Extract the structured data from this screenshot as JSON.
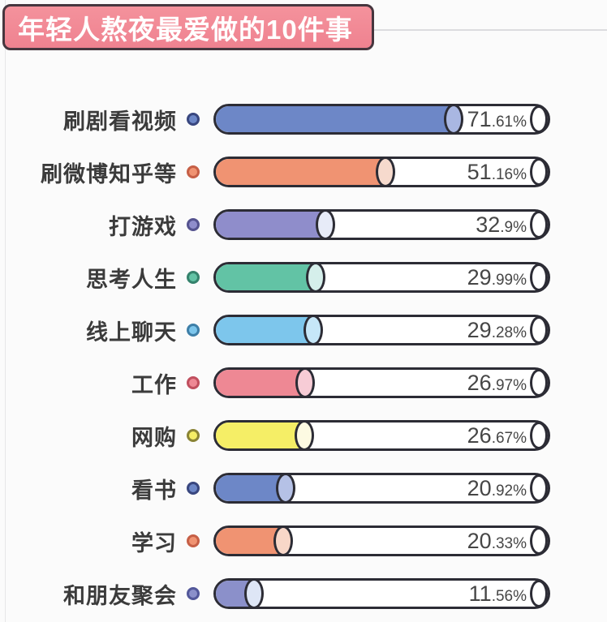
{
  "title": "年轻人熬夜最爱做的10件事",
  "colors": {
    "page_bg": "#fbfbfb",
    "banner_bg": "#f1848f",
    "banner_border": "#46363e",
    "title_text": "#ffffff",
    "divider": "#dcdcdf",
    "outline": "#2c2c35",
    "label_text": "#3b3b3b",
    "value_text": "#464646",
    "track_bg": "#ffffff"
  },
  "chart_data": {
    "type": "bar",
    "orientation": "horizontal",
    "title": "年轻人熬夜最爱做的10件事",
    "categories": [
      "刷剧看视频",
      "刷微博知乎等",
      "打游戏",
      "思考人生",
      "线上聊天",
      "工作",
      "网购",
      "看书",
      "学习",
      "和朋友聚会"
    ],
    "values": [
      71.61,
      51.16,
      32.9,
      29.99,
      29.28,
      26.97,
      26.67,
      20.92,
      20.33,
      11.56
    ],
    "value_labels": [
      "71.61%",
      "51.16%",
      "32.9%",
      "29.99%",
      "29.28%",
      "26.97%",
      "26.67%",
      "20.92%",
      "20.33%",
      "11.56%"
    ],
    "xlabel": "",
    "ylabel": "",
    "xlim": [
      0,
      100
    ],
    "grid": false,
    "legend": false,
    "bar_style": "outlined-cylinder-pill"
  },
  "rows": [
    {
      "label": "刷剧看视频",
      "value": 71.61,
      "pct_int": "71",
      "pct_frac": ".61%",
      "bar_color": "#6d87c7",
      "cap_color": "#a9b7e2",
      "dot_fill": "#6d87c7",
      "dot_border": "#39477f"
    },
    {
      "label": "刷微博知乎等",
      "value": 51.16,
      "pct_int": "51",
      "pct_frac": ".16%",
      "bar_color": "#f09372",
      "cap_color": "#f6dacd",
      "dot_fill": "#f09372",
      "dot_border": "#c65f46"
    },
    {
      "label": "打游戏",
      "value": 32.9,
      "pct_int": "32",
      "pct_frac": ".9%",
      "bar_color": "#8f8dcb",
      "cap_color": "#e7ebf8",
      "dot_fill": "#8f8dcb",
      "dot_border": "#55538f"
    },
    {
      "label": "思考人生",
      "value": 29.99,
      "pct_int": "29",
      "pct_frac": ".99%",
      "bar_color": "#62c3a5",
      "cap_color": "#d5efeb",
      "dot_fill": "#62c3a5",
      "dot_border": "#35826c"
    },
    {
      "label": "线上聊天",
      "value": 29.28,
      "pct_int": "29",
      "pct_frac": ".28%",
      "bar_color": "#7dc6ec",
      "cap_color": "#c6e7f8",
      "dot_fill": "#7dc6ec",
      "dot_border": "#3e7fa8"
    },
    {
      "label": "工作",
      "value": 26.97,
      "pct_int": "26",
      "pct_frac": ".97%",
      "bar_color": "#ee8894",
      "cap_color": "#f7ccd6",
      "dot_fill": "#ee8894",
      "dot_border": "#c04f5e"
    },
    {
      "label": "网购",
      "value": 26.67,
      "pct_int": "26",
      "pct_frac": ".67%",
      "bar_color": "#f5ee66",
      "cap_color": "#fdfae2",
      "dot_fill": "#f5ee66",
      "dot_border": "#8a8435"
    },
    {
      "label": "看书",
      "value": 20.92,
      "pct_int": "20",
      "pct_frac": ".92%",
      "bar_color": "#6d87c7",
      "cap_color": "#b5c1e6",
      "dot_fill": "#6d87c7",
      "dot_border": "#39477f"
    },
    {
      "label": "学习",
      "value": 20.33,
      "pct_int": "20",
      "pct_frac": ".33%",
      "bar_color": "#f09372",
      "cap_color": "#f8d7c8",
      "dot_fill": "#f09372",
      "dot_border": "#c65f46"
    },
    {
      "label": "和朋友聚会",
      "value": 11.56,
      "pct_int": "11",
      "pct_frac": ".56%",
      "bar_color": "#8b90ca",
      "cap_color": "#dee6f6",
      "dot_fill": "#8b90ca",
      "dot_border": "#53589a"
    }
  ]
}
